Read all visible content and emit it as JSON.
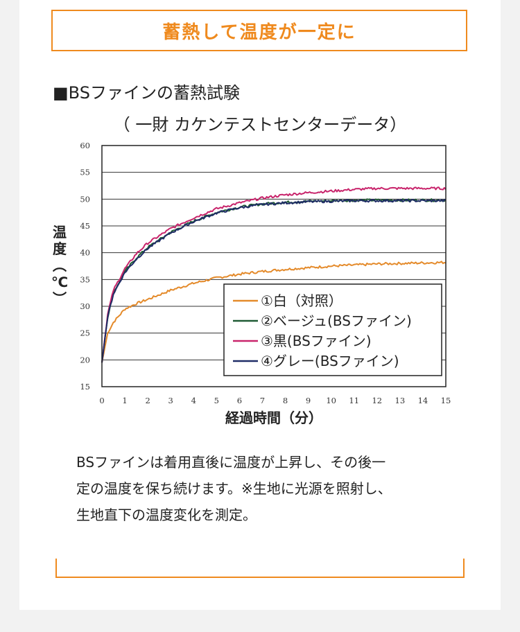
{
  "banner": {
    "title": "蓄熱して温度が一定に"
  },
  "section": {
    "heading": "■BSファインの蓄熱試験",
    "source": "（ 一財 カケンテストセンターデータ）"
  },
  "chart_data": {
    "type": "line",
    "ylabel": "温度（℃）",
    "xlabel": "経過時間（分）",
    "ylim": [
      15,
      60
    ],
    "xlim": [
      0,
      15
    ],
    "y_ticks": [
      15,
      20,
      25,
      30,
      35,
      40,
      45,
      50,
      55,
      60
    ],
    "x_ticks": [
      0,
      1,
      2,
      3,
      4,
      5,
      6,
      7,
      8,
      9,
      10,
      11,
      12,
      13,
      14,
      15
    ],
    "grid": "horizontal",
    "legend_position": "bottom-right",
    "series": [
      {
        "name": "①白（対照）",
        "color": "#e48a2a",
        "x": [
          0,
          0.25,
          0.5,
          1,
          1.5,
          2,
          3,
          4,
          5,
          6,
          7,
          8,
          9,
          10,
          11,
          12,
          13,
          14,
          15
        ],
        "y": [
          19.5,
          25,
          27,
          29.5,
          30.5,
          31.3,
          33,
          34.3,
          35.3,
          36,
          36.5,
          36.9,
          37.2,
          37.5,
          37.7,
          37.9,
          38,
          38.1,
          38.2
        ]
      },
      {
        "name": "②ベージュ(BSファイン)",
        "color": "#1f5a34",
        "x": [
          0,
          0.25,
          0.5,
          1,
          1.5,
          2,
          3,
          4,
          5,
          6,
          7,
          8,
          9,
          10,
          11,
          12,
          13,
          14,
          15
        ],
        "y": [
          19.5,
          28,
          32.5,
          36.5,
          39,
          41,
          43.8,
          45.9,
          47.5,
          48.5,
          49.1,
          49.4,
          49.6,
          49.7,
          49.8,
          49.8,
          49.8,
          49.8,
          49.8
        ]
      },
      {
        "name": "③黒(BSファイン)",
        "color": "#c8246b",
        "x": [
          0,
          0.25,
          0.5,
          1,
          1.5,
          2,
          3,
          4,
          5,
          6,
          7,
          8,
          9,
          10,
          11,
          12,
          13,
          14,
          15
        ],
        "y": [
          19.5,
          28.5,
          33,
          37,
          39.8,
          41.8,
          44.5,
          46.5,
          48.2,
          49.3,
          50.2,
          50.8,
          51.2,
          51.5,
          51.8,
          52,
          52,
          52,
          52
        ]
      },
      {
        "name": "④グレー(BSファイン)",
        "color": "#1f2c66",
        "x": [
          0,
          0.25,
          0.5,
          1,
          1.5,
          2,
          3,
          4,
          5,
          6,
          7,
          8,
          9,
          10,
          11,
          12,
          13,
          14,
          15
        ],
        "y": [
          19.5,
          28,
          32.3,
          36.3,
          38.8,
          40.8,
          43.7,
          45.8,
          47.4,
          48.4,
          49,
          49.3,
          49.5,
          49.6,
          49.7,
          49.7,
          49.7,
          49.7,
          49.7
        ]
      }
    ]
  },
  "description": {
    "line1": "BSファインは着用直後に温度が上昇し、その後一",
    "line2": "定の温度を保ち続けます。※生地に光源を照射し、",
    "line3": "生地直下の温度変化を測定。"
  }
}
